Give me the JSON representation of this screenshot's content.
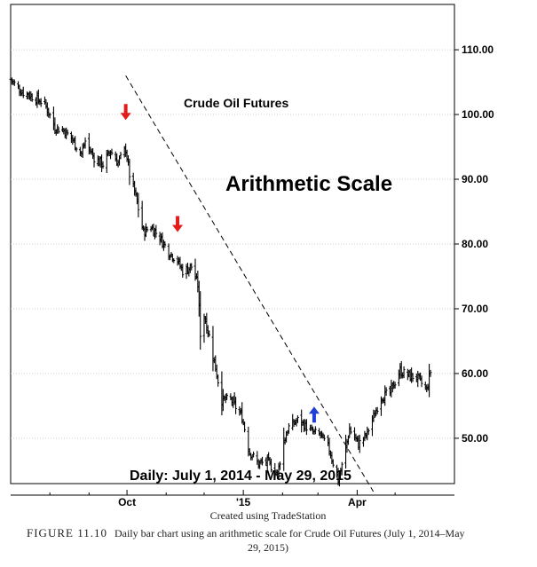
{
  "chart_data": {
    "type": "bar",
    "subtype": "ohlc-daily",
    "title": "Crude Oil Futures",
    "scale_label": "Arithmetic Scale",
    "period_label": "Daily: July 1, 2014 - May 29, 2015",
    "y_axis": {
      "position": "right",
      "scale": "arithmetic",
      "ylim": [
        43,
        117
      ],
      "ticks": [
        50,
        60,
        70,
        80,
        90,
        100,
        110
      ],
      "tick_labels": [
        "50.00",
        "60.00",
        "70.00",
        "80.00",
        "90.00",
        "100.00",
        "110.00"
      ]
    },
    "x_axis": {
      "tick_labels": [
        {
          "date": "2014-10-01",
          "label": "Oct"
        },
        {
          "date": "2015-01-01",
          "label": "'15"
        },
        {
          "date": "2015-04-01",
          "label": "Apr"
        }
      ],
      "minor_ticks": [
        "2014-08-01",
        "2014-09-01",
        "2014-11-01",
        "2014-12-01",
        "2015-02-01",
        "2015-03-01",
        "2015-05-01"
      ],
      "range": [
        "2014-07-01",
        "2015-05-29"
      ]
    },
    "price_path_close": [
      [
        "2014-07-01",
        105.4
      ],
      [
        "2014-07-10",
        103.5
      ],
      [
        "2014-07-17",
        102.9
      ],
      [
        "2014-07-28",
        101.7
      ],
      [
        "2014-08-05",
        98.0
      ],
      [
        "2014-08-12",
        97.6
      ],
      [
        "2014-08-18",
        96.3
      ],
      [
        "2014-08-26",
        93.9
      ],
      [
        "2014-08-29",
        95.9
      ],
      [
        "2014-09-05",
        93.3
      ],
      [
        "2014-09-12",
        92.3
      ],
      [
        "2014-09-18",
        94.4
      ],
      [
        "2014-09-24",
        92.6
      ],
      [
        "2014-09-30",
        94.7
      ],
      [
        "2014-10-03",
        90.7
      ],
      [
        "2014-10-08",
        87.3
      ],
      [
        "2014-10-14",
        81.8
      ],
      [
        "2014-10-20",
        82.7
      ],
      [
        "2014-10-27",
        81.0
      ],
      [
        "2014-11-03",
        78.8
      ],
      [
        "2014-11-10",
        77.4
      ],
      [
        "2014-11-14",
        75.8
      ],
      [
        "2014-11-21",
        76.5
      ],
      [
        "2014-11-26",
        73.7
      ],
      [
        "2014-11-28",
        66.2
      ],
      [
        "2014-12-01",
        69.0
      ],
      [
        "2014-12-05",
        65.8
      ],
      [
        "2014-12-10",
        60.9
      ],
      [
        "2014-12-15",
        55.9
      ],
      [
        "2014-12-22",
        56.0
      ],
      [
        "2014-12-31",
        53.3
      ],
      [
        "2015-01-06",
        47.9
      ],
      [
        "2015-01-13",
        46.0
      ],
      [
        "2015-01-20",
        46.4
      ],
      [
        "2015-01-28",
        44.5
      ],
      [
        "2015-02-02",
        49.6
      ],
      [
        "2015-02-06",
        51.7
      ],
      [
        "2015-02-13",
        52.8
      ],
      [
        "2015-02-18",
        52.1
      ],
      [
        "2015-02-25",
        50.9
      ],
      [
        "2015-03-03",
        50.5
      ],
      [
        "2015-03-10",
        48.3
      ],
      [
        "2015-03-17",
        43.5
      ],
      [
        "2015-03-20",
        45.7
      ],
      [
        "2015-03-26",
        51.4
      ],
      [
        "2015-04-02",
        49.1
      ],
      [
        "2015-04-08",
        50.4
      ],
      [
        "2015-04-14",
        53.3
      ],
      [
        "2015-04-20",
        56.4
      ],
      [
        "2015-04-27",
        57.0
      ],
      [
        "2015-05-05",
        60.4
      ],
      [
        "2015-05-11",
        59.7
      ],
      [
        "2015-05-18",
        59.4
      ],
      [
        "2015-05-26",
        57.5
      ],
      [
        "2015-05-29",
        60.3
      ]
    ],
    "trendline": {
      "style": "dashed",
      "points": [
        [
          "2014-09-30",
          106.0
        ],
        [
          "2015-03-31",
          46.3
        ]
      ]
    },
    "arrows": [
      {
        "date": "2014-09-30",
        "direction": "down",
        "color": "#e31b1b"
      },
      {
        "date": "2014-11-10",
        "direction": "down",
        "color": "#e31b1b"
      },
      {
        "date": "2015-02-26",
        "direction": "up",
        "color": "#1f3fd8"
      }
    ],
    "legend": "none",
    "grid": true
  },
  "source_note": "Created using TradeStation",
  "figure_caption": {
    "number": "FIGURE 11.10",
    "line1": "Daily bar chart using an arithmetic scale for Crude Oil Futures (July 1, 2014–May",
    "line2": "29, 2015)"
  },
  "colors": {
    "bars": "#000000",
    "grid": "#cfcfcf",
    "down_arrow": "#e31b1b",
    "up_arrow": "#1f3fd8"
  }
}
